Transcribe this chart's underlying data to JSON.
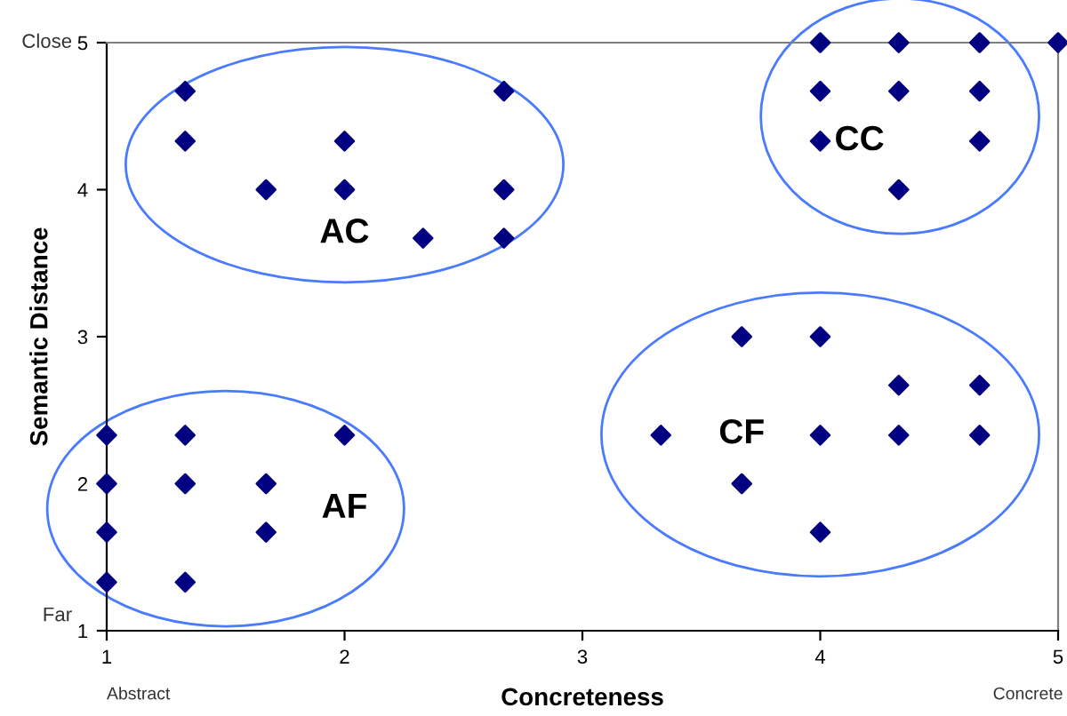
{
  "chart_data": {
    "type": "scatter",
    "xlabel": "Concreteness",
    "ylabel": "Semantic Distance",
    "x": [
      1.33,
      1.33,
      1.67,
      2,
      2,
      2.33,
      2.67,
      2.67,
      2.67,
      4,
      4.33,
      4.67,
      4,
      4.33,
      4.67,
      4,
      4.67,
      4.33,
      5,
      3.33,
      3.67,
      4,
      3.67,
      4,
      4,
      4.33,
      4.33,
      4.67,
      4.67,
      1,
      1,
      1,
      1,
      1.33,
      1.33,
      1.33,
      1.67,
      1.67,
      2
    ],
    "series": [
      {
        "color": "#000080",
        "values": [
          4.67,
          4.33,
          4,
          4.33,
          4,
          3.67,
          4.67,
          4,
          3.67,
          5,
          5,
          5,
          4.67,
          4.67,
          4.67,
          4.33,
          4.33,
          4,
          5,
          2.33,
          3,
          3,
          2,
          2.33,
          1.67,
          2.67,
          2.33,
          2.67,
          2.33,
          2.33,
          2,
          1.67,
          1.33,
          2.33,
          2,
          1.33,
          2,
          1.67,
          2.33
        ]
      }
    ],
    "marker": "diamond",
    "grid": false,
    "xlim": [
      1,
      5
    ],
    "xticks": [
      1,
      2,
      3,
      4,
      5
    ],
    "ylim": [
      1,
      5
    ],
    "yticks": [
      1,
      2,
      3,
      4,
      5
    ],
    "annotations": [
      "AC",
      "CC",
      "CF",
      "AF",
      "Close",
      "Far",
      "Abstract",
      "Concrete"
    ]
  }
}
